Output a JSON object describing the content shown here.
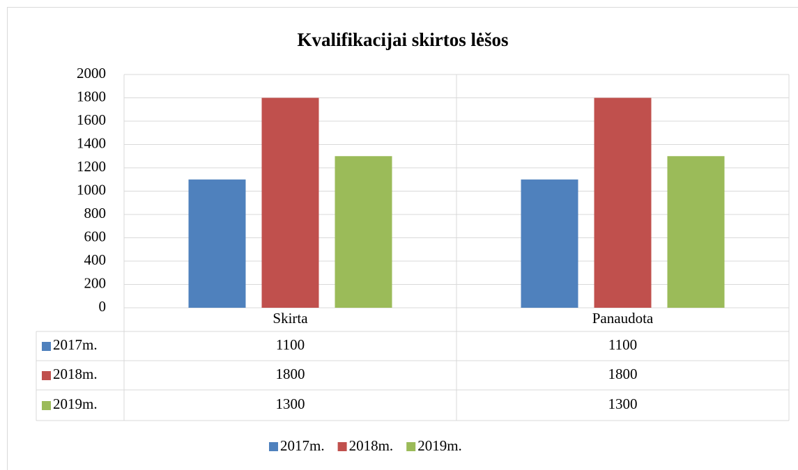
{
  "chart_data": {
    "type": "bar",
    "title": "Kvalifikacijai skirtos lėšos",
    "categories": [
      "Skirta",
      "Panaudota"
    ],
    "series": [
      {
        "name": "2017m.",
        "color": "#4f81bd",
        "values": [
          1100,
          1100
        ]
      },
      {
        "name": "2018m.",
        "color": "#c0504d",
        "values": [
          1800,
          1800
        ]
      },
      {
        "name": "2019m.",
        "color": "#9bbb59",
        "values": [
          1300,
          1300
        ]
      }
    ],
    "ylim": [
      0,
      2000
    ],
    "yticks": [
      0,
      200,
      400,
      600,
      800,
      1000,
      1200,
      1400,
      1600,
      1800,
      2000
    ],
    "grid": true,
    "legend": "bottom",
    "data_table": true
  }
}
